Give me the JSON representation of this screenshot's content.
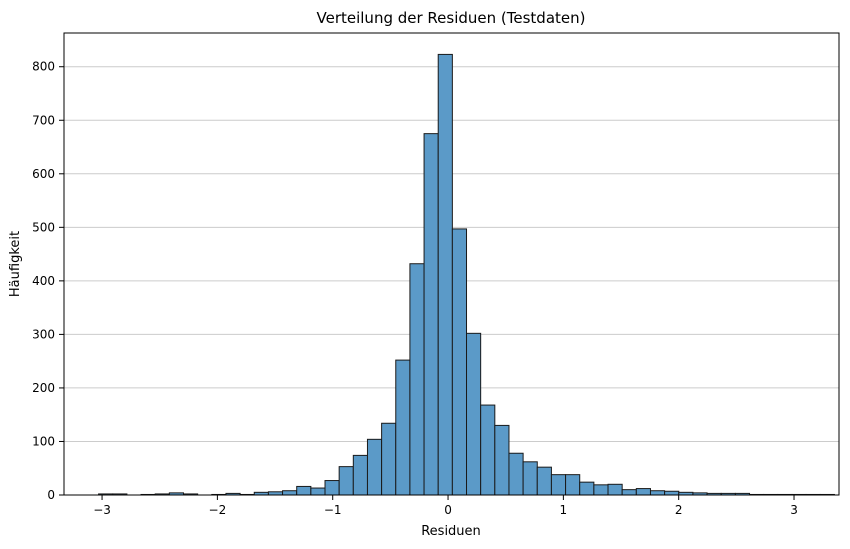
{
  "chart_data": {
    "type": "bar",
    "title": "Verteilung der Residuen (Testdaten)",
    "xlabel": "Residuen",
    "ylabel": "Häufigkeit",
    "xlim": [
      -3.33,
      3.39
    ],
    "ylim": [
      0,
      863
    ],
    "xticks": [
      -3,
      -2,
      -1,
      0,
      1,
      2,
      3
    ],
    "xtick_labels": [
      "−3",
      "−2",
      "−1",
      "0",
      "1",
      "2",
      "3"
    ],
    "yticks": [
      0,
      100,
      200,
      300,
      400,
      500,
      600,
      700,
      800
    ],
    "ytick_labels": [
      "0",
      "100",
      "200",
      "300",
      "400",
      "500",
      "600",
      "700",
      "800"
    ],
    "grid": "y-axis only",
    "bar_color": "#5b9ac8",
    "bar_edge_color": "#1a1a1a",
    "bins": {
      "start": -3.03,
      "width": 0.1227,
      "values": [
        2,
        2,
        0,
        1,
        2,
        4,
        2,
        0,
        1,
        3,
        1,
        5,
        6,
        8,
        16,
        13,
        27,
        53,
        74,
        104,
        134,
        252,
        432,
        675,
        823,
        497,
        302,
        168,
        130,
        78,
        62,
        52,
        38,
        38,
        24,
        19,
        20,
        10,
        12,
        8,
        7,
        5,
        4,
        3,
        3,
        3,
        1,
        1,
        1,
        1,
        1,
        1
      ]
    }
  }
}
